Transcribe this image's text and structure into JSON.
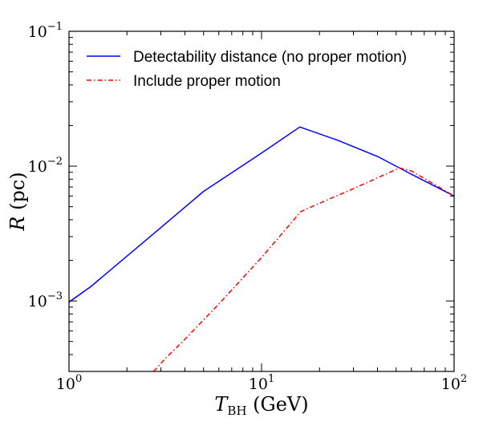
{
  "chart_data": {
    "type": "line",
    "title": "",
    "xlabel": {
      "main": "T",
      "sub": "BH",
      "rest": " (GeV)"
    },
    "ylabel": {
      "main": "R",
      "rest": " (pc)"
    },
    "xscale": "log",
    "yscale": "log",
    "xlim": [
      1,
      100
    ],
    "ylim": [
      0.0003,
      0.1
    ],
    "grid": false,
    "legend_position": "top-left",
    "x_ticks": [
      {
        "value": 1,
        "base": "10",
        "exp": "0"
      },
      {
        "value": 10,
        "base": "10",
        "exp": "1"
      },
      {
        "value": 100,
        "base": "10",
        "exp": "2"
      }
    ],
    "y_ticks": [
      {
        "value": 0.001,
        "base": "10",
        "exp": "−3"
      },
      {
        "value": 0.01,
        "base": "10",
        "exp": "−2"
      },
      {
        "value": 0.1,
        "base": "10",
        "exp": "−1"
      }
    ],
    "series": [
      {
        "name": "Detectability distance (no proper motion)",
        "color": "#0000ff",
        "style": "solid",
        "x": [
          1,
          1.3,
          2,
          3,
          5,
          10,
          15.8,
          25,
          40,
          60,
          100
        ],
        "y": [
          0.00098,
          0.00128,
          0.00215,
          0.0035,
          0.0065,
          0.0125,
          0.0195,
          0.0155,
          0.0118,
          0.0087,
          0.006
        ]
      },
      {
        "name": "Include proper motion",
        "color": "#ff0000",
        "style": "dashdot",
        "x": [
          2.75,
          3.2,
          4,
          6,
          10,
          16,
          20,
          30,
          52,
          60,
          100
        ],
        "y": [
          0.0003,
          0.00038,
          0.00052,
          0.00095,
          0.0021,
          0.0046,
          0.0053,
          0.0068,
          0.0097,
          0.0092,
          0.006
        ]
      }
    ]
  }
}
